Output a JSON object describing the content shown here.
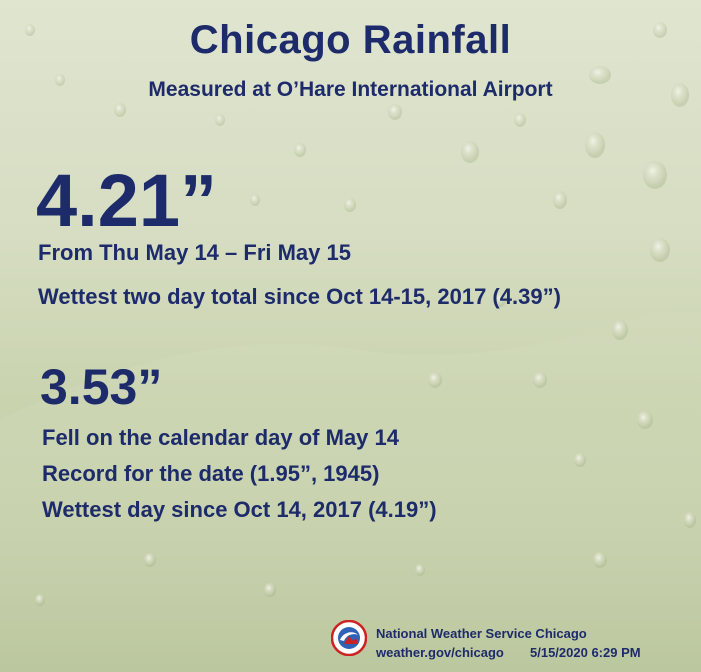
{
  "header": {
    "title": "Chicago Rainfall",
    "subtitle": "Measured at O’Hare International  Airport"
  },
  "two_day": {
    "amount": "4.21”",
    "period": "From Thu May 14 – Fri May 15",
    "note": "Wettest two day total since Oct 14-15, 2017 (4.39”)"
  },
  "one_day": {
    "amount": "3.53”",
    "lines": [
      "Fell on the calendar day of May 14",
      "Record for the date  (1.95”, 1945)",
      "Wettest day since Oct 14, 2017  (4.19”)"
    ]
  },
  "footer": {
    "office": "National Weather Service Chicago",
    "url": "weather.gov/chicago",
    "timestamp": "5/15/2020 6:29 PM",
    "logo_icon": "nws-logo-icon"
  },
  "colors": {
    "text": "#1d2b6b",
    "background": "#d6ddc2"
  }
}
